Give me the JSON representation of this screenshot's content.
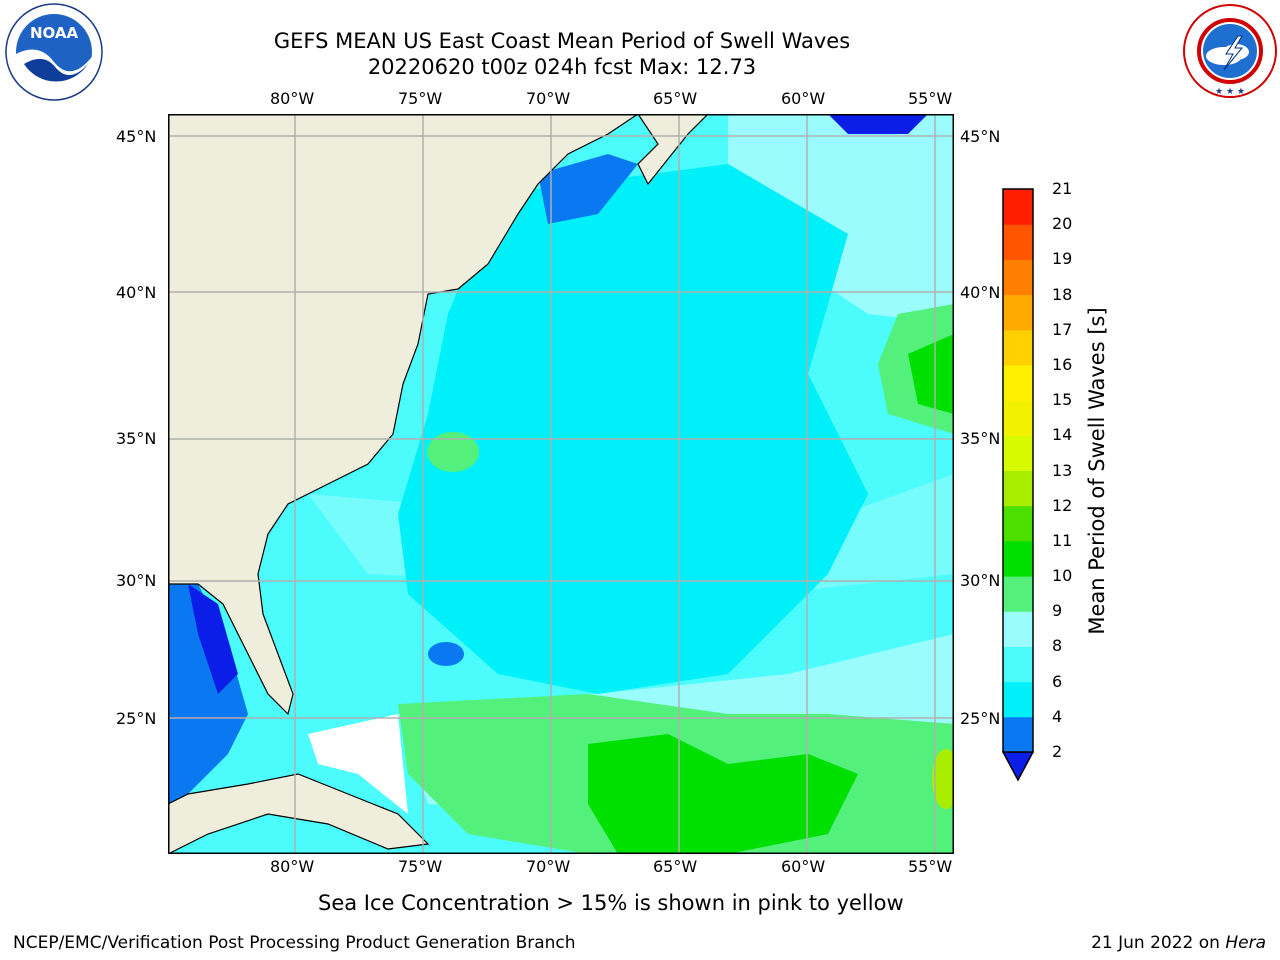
{
  "header": {
    "title_line1": "GEFS MEAN US East Coast Mean Period of Swell Waves",
    "title_line2": "20220620 t00z 024h fcst   Max: 12.73"
  },
  "logos": {
    "noaa": {
      "text": "NOAA",
      "ring_text": "NATIONAL OCEANIC AND ATMOSPHERIC ADMINISTRATION · U.S. DEPARTMENT OF COMMERCE"
    },
    "nws": {
      "ring_text": "NATIONAL WEATHER SERVICE"
    }
  },
  "map": {
    "lon_labels_top": [
      "80°W",
      "75°W",
      "70°W",
      "65°W",
      "60°W",
      "55°W"
    ],
    "lon_labels_bottom": [
      "80°W",
      "75°W",
      "70°W",
      "65°W",
      "60°W",
      "55°W"
    ],
    "lat_labels_left": [
      "45°N",
      "40°N",
      "35°N",
      "30°N",
      "25°N"
    ],
    "lat_labels_right": [
      "45°N",
      "40°N",
      "35°N",
      "30°N",
      "25°N"
    ],
    "colors": {
      "land": "#efeedd",
      "grid": "#b0b0b0"
    }
  },
  "colorbar": {
    "label": "Mean Period of Swell Waves [s]",
    "ticks": [
      "2",
      "4",
      "6",
      "8",
      "9",
      "10",
      "11",
      "12",
      "13",
      "14",
      "15",
      "16",
      "17",
      "18",
      "19",
      "20",
      "21"
    ],
    "colors": [
      "#0b1ee8",
      "#0a78f0",
      "#00f0fa",
      "#4cfcfc",
      "#9afcfc",
      "#54f07c",
      "#00e000",
      "#4ce000",
      "#a8ec00",
      "#d8fa00",
      "#f2f200",
      "#fff000",
      "#ffd000",
      "#ffaa00",
      "#ff8000",
      "#ff5400",
      "#ff1e00",
      "#ff0000"
    ]
  },
  "notes": {
    "sea_ice": "Sea Ice Concentration > 15% is shown in pink to yellow"
  },
  "footer": {
    "left": "NCEP/EMC/Verification Post Processing Product Generation Branch",
    "right_prefix": "21 Jun 2022 on ",
    "right_machine": "Hera"
  }
}
